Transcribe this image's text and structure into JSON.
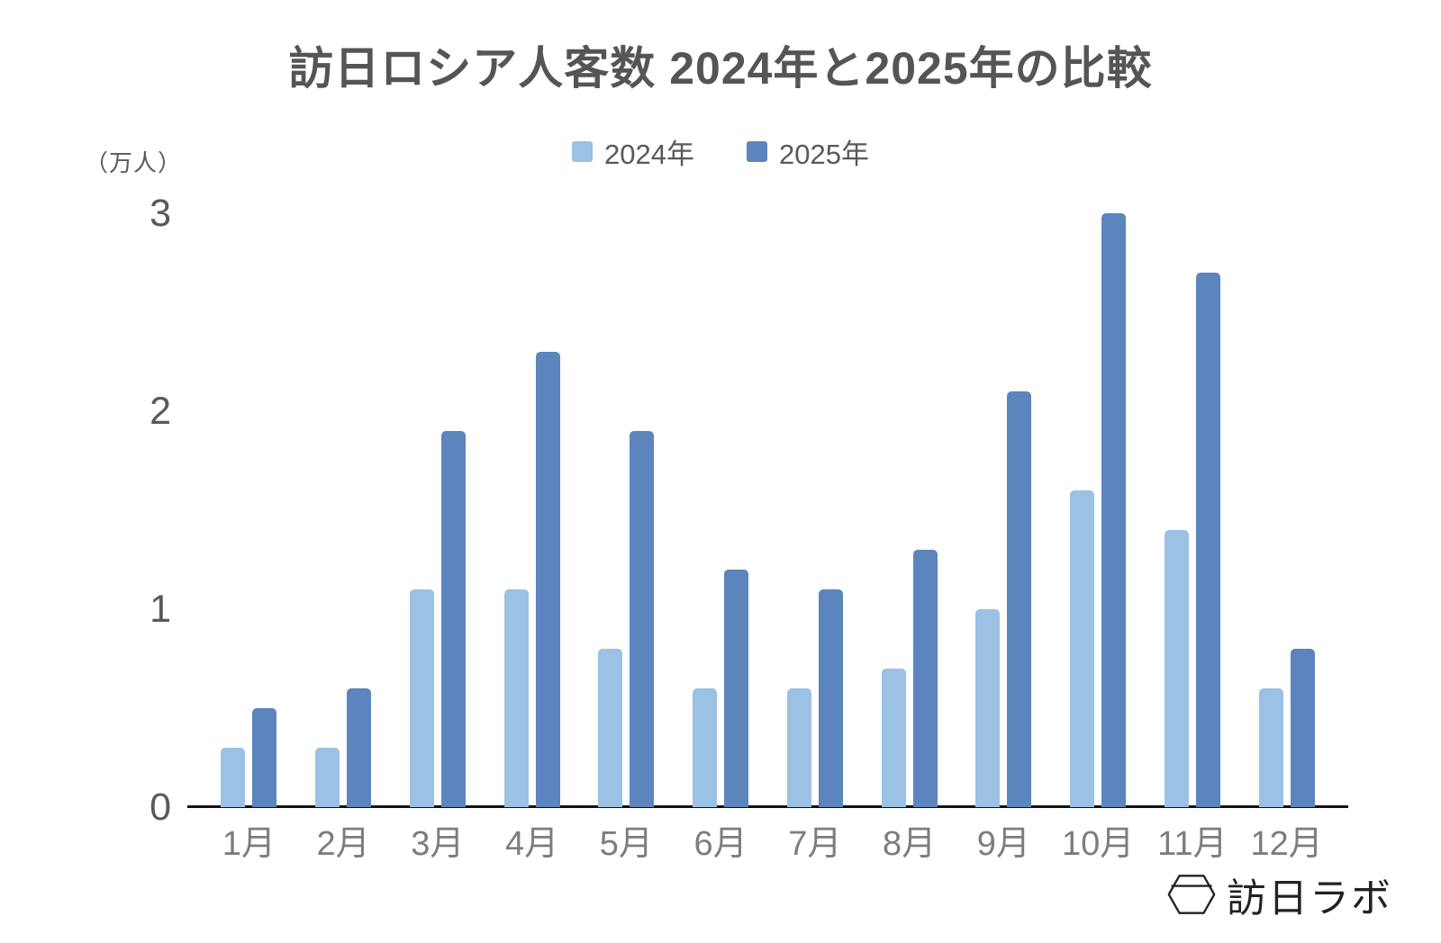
{
  "title": "訪日ロシア人客数 2024年と2025年の比較",
  "y_axis_unit_label": "（万人）",
  "legend": [
    {
      "label": "2024年",
      "color": "#9BC1E4"
    },
    {
      "label": "2025年",
      "color": "#5B85BC"
    }
  ],
  "chart_data": {
    "type": "bar",
    "title": "訪日ロシア人客数 2024年と2025年の比較",
    "ylabel": "（万人）",
    "xlabel": "",
    "categories": [
      "1月",
      "2月",
      "3月",
      "4月",
      "5月",
      "6月",
      "7月",
      "8月",
      "9月",
      "10月",
      "11月",
      "12月"
    ],
    "series": [
      {
        "name": "2024年",
        "color": "#9BC1E4",
        "values": [
          0.3,
          0.3,
          1.1,
          1.1,
          0.8,
          0.6,
          0.6,
          0.7,
          1.0,
          1.6,
          1.4,
          0.6
        ]
      },
      {
        "name": "2025年",
        "color": "#5B85BC",
        "values": [
          0.5,
          0.6,
          1.9,
          2.3,
          1.9,
          1.2,
          1.1,
          1.3,
          2.1,
          3.0,
          2.7,
          0.8
        ]
      }
    ],
    "ylim": [
      0,
      3
    ],
    "yticks": [
      0,
      1,
      2,
      3
    ],
    "grid": false,
    "legend_position": "top-center",
    "colors": {
      "axis_line": "#111111",
      "tick_text": "#595959",
      "x_tick_text": "#7d7d7d",
      "title_text": "#555555"
    }
  },
  "logo": {
    "text": "訪日ラボ",
    "icon": "hexagon-lantern-icon"
  }
}
